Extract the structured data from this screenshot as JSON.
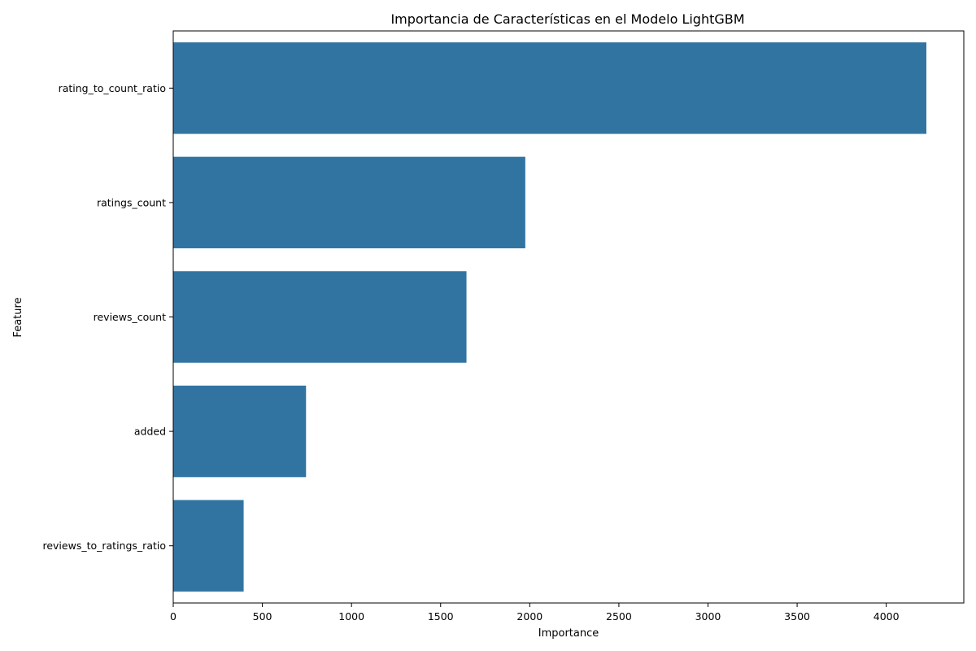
{
  "chart_data": {
    "type": "bar",
    "orientation": "horizontal",
    "title": "Importancia de Características en el Modelo LightGBM",
    "xlabel": "Importance",
    "ylabel": "Feature",
    "categories": [
      "rating_to_count_ratio",
      "ratings_count",
      "reviews_count",
      "added",
      "reviews_to_ratings_ratio"
    ],
    "values": [
      4225,
      1975,
      1645,
      745,
      395
    ],
    "xlim": [
      0,
      4435
    ],
    "xticks": [
      0,
      500,
      1000,
      1500,
      2000,
      2500,
      3000,
      3500,
      4000
    ],
    "xtick_labels": [
      "0",
      "500",
      "1000",
      "1500",
      "2000",
      "2500",
      "3000",
      "3500",
      "4000"
    ],
    "grid": false,
    "legend": "none",
    "bar_color": "#3274a1"
  }
}
